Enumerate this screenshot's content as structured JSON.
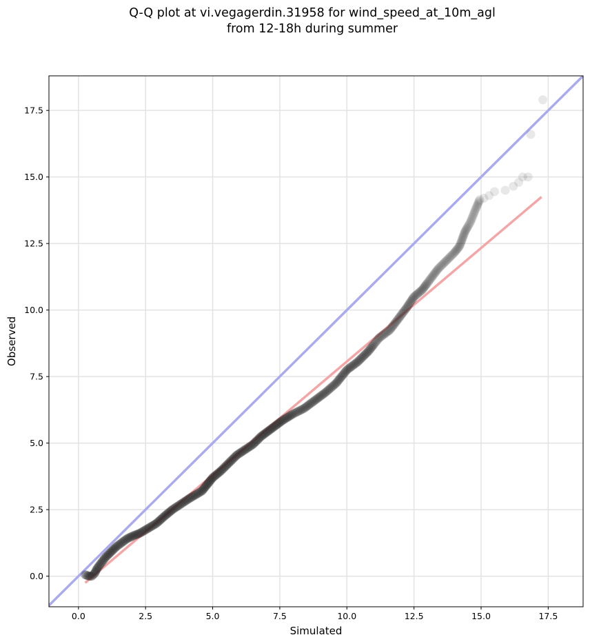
{
  "chart_data": {
    "type": "scatter",
    "title": "Q-Q plot at vi.vegagerdin.31958 for wind_speed_at_10m_agl",
    "subtitle": "from 12-18h during summer",
    "xlabel": "Simulated",
    "ylabel": "Observed",
    "xlim": [
      -1.1,
      18.8
    ],
    "ylim": [
      -1.15,
      18.8
    ],
    "xticks": [
      0.0,
      2.5,
      5.0,
      7.5,
      10.0,
      12.5,
      15.0,
      17.5
    ],
    "yticks": [
      0.0,
      2.5,
      5.0,
      7.5,
      10.0,
      12.5,
      15.0,
      17.5
    ],
    "xtick_labels": [
      "0.0",
      "2.5",
      "5.0",
      "7.5",
      "10.0",
      "12.5",
      "15.0",
      "17.5"
    ],
    "ytick_labels": [
      "0.0",
      "2.5",
      "5.0",
      "7.5",
      "10.0",
      "12.5",
      "15.0",
      "17.5"
    ],
    "grid": true,
    "identity_line": {
      "color": "#aaaaee"
    },
    "fit_line": {
      "color": "#f4a6a6",
      "x": [
        0.25,
        17.25
      ],
      "y": [
        -0.25,
        14.25
      ]
    },
    "points_color": "#222222",
    "qq_curve": [
      [
        0.25,
        0.05
      ],
      [
        0.4,
        0.0
      ],
      [
        0.5,
        0.0
      ],
      [
        0.6,
        0.1
      ],
      [
        0.7,
        0.3
      ],
      [
        0.85,
        0.5
      ],
      [
        1.0,
        0.7
      ],
      [
        1.2,
        0.9
      ],
      [
        1.4,
        1.1
      ],
      [
        1.6,
        1.25
      ],
      [
        1.8,
        1.4
      ],
      [
        2.0,
        1.5
      ],
      [
        2.3,
        1.62
      ],
      [
        2.6,
        1.8
      ],
      [
        2.9,
        1.98
      ],
      [
        3.2,
        2.25
      ],
      [
        3.5,
        2.5
      ],
      [
        3.8,
        2.7
      ],
      [
        4.1,
        2.9
      ],
      [
        4.4,
        3.08
      ],
      [
        4.6,
        3.2
      ],
      [
        4.8,
        3.45
      ],
      [
        5.0,
        3.7
      ],
      [
        5.3,
        3.95
      ],
      [
        5.6,
        4.25
      ],
      [
        5.9,
        4.55
      ],
      [
        6.2,
        4.75
      ],
      [
        6.5,
        4.95
      ],
      [
        6.8,
        5.25
      ],
      [
        7.2,
        5.55
      ],
      [
        7.6,
        5.85
      ],
      [
        8.0,
        6.1
      ],
      [
        8.4,
        6.3
      ],
      [
        8.8,
        6.6
      ],
      [
        9.2,
        6.9
      ],
      [
        9.6,
        7.25
      ],
      [
        10.0,
        7.75
      ],
      [
        10.4,
        8.05
      ],
      [
        10.8,
        8.45
      ],
      [
        11.2,
        8.95
      ],
      [
        11.6,
        9.25
      ],
      [
        11.9,
        9.65
      ],
      [
        12.2,
        10.05
      ],
      [
        12.5,
        10.5
      ],
      [
        12.8,
        10.75
      ],
      [
        13.1,
        11.15
      ],
      [
        13.4,
        11.55
      ],
      [
        13.7,
        11.85
      ],
      [
        14.0,
        12.15
      ],
      [
        14.2,
        12.4
      ],
      [
        14.4,
        12.95
      ],
      [
        14.6,
        13.3
      ],
      [
        14.8,
        13.8
      ],
      [
        14.95,
        14.15
      ]
    ],
    "qq_tail": [
      [
        15.1,
        14.2
      ],
      [
        15.3,
        14.3
      ],
      [
        15.5,
        14.45
      ],
      [
        15.9,
        14.5
      ],
      [
        16.2,
        14.65
      ],
      [
        16.4,
        14.8
      ],
      [
        16.55,
        15.0
      ],
      [
        16.75,
        15.0
      ],
      [
        16.85,
        16.6
      ],
      [
        17.3,
        17.9
      ]
    ]
  }
}
